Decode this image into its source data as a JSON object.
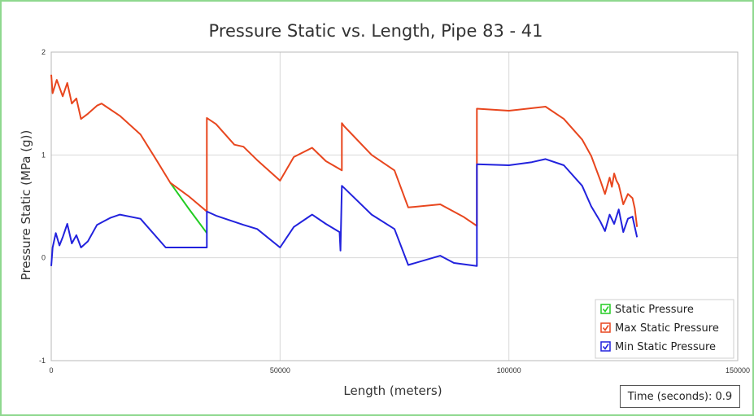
{
  "chart_data": {
    "type": "line",
    "title": "Pressure Static vs. Length, Pipe 83 - 41",
    "xlabel": "Length (meters)",
    "ylabel": "Pressure Static (MPa (g))",
    "xlim": [
      0,
      150000
    ],
    "ylim": [
      -1,
      2
    ],
    "xticks": [
      0,
      50000,
      100000,
      150000
    ],
    "xtick_labels": [
      "0",
      "50000",
      "100000",
      "150000"
    ],
    "yticks": [
      -1,
      0,
      1,
      2
    ],
    "ytick_labels": [
      "-1",
      "0",
      "1",
      "2"
    ],
    "grid": true,
    "legend_position": "bottom-right",
    "series": [
      {
        "name": "Static Pressure",
        "color": "#22cc22",
        "x": [
          26000,
          30000,
          34000
        ],
        "y": [
          0.73,
          0.48,
          0.24
        ]
      },
      {
        "name": "Max Static Pressure",
        "color": "#e8461e",
        "x": [
          0,
          300,
          1200,
          2500,
          3500,
          4500,
          5500,
          6500,
          8000,
          10000,
          11000,
          15000,
          19500,
          23000,
          26000,
          30000,
          34000,
          34000,
          36000,
          40000,
          42000,
          45000,
          50000,
          53000,
          57000,
          60000,
          63500,
          63500,
          64000,
          70000,
          75000,
          78000,
          85000,
          90000,
          93000,
          93000,
          100000,
          108000,
          112000,
          116000,
          118000,
          120000,
          121000,
          122000,
          122500,
          123000,
          123500,
          124000,
          125000,
          126000,
          127000,
          127500,
          128000
        ],
        "y": [
          1.78,
          1.6,
          1.73,
          1.57,
          1.7,
          1.5,
          1.55,
          1.35,
          1.4,
          1.48,
          1.5,
          1.38,
          1.2,
          0.95,
          0.73,
          0.6,
          0.45,
          1.36,
          1.3,
          1.1,
          1.08,
          0.95,
          0.75,
          0.98,
          1.07,
          0.94,
          0.85,
          1.31,
          1.28,
          1.0,
          0.85,
          0.49,
          0.52,
          0.4,
          0.31,
          1.45,
          1.43,
          1.47,
          1.35,
          1.15,
          0.99,
          0.75,
          0.62,
          0.78,
          0.69,
          0.82,
          0.75,
          0.71,
          0.52,
          0.62,
          0.58,
          0.48,
          0.3
        ]
      },
      {
        "name": "Min Static Pressure",
        "color": "#2222dd",
        "x": [
          0,
          300,
          1000,
          1800,
          2500,
          3500,
          4500,
          5500,
          6500,
          8000,
          10000,
          13000,
          15000,
          19500,
          25000,
          34000,
          34000,
          36000,
          42000,
          45000,
          50000,
          53000,
          57000,
          60000,
          63000,
          63200,
          63500,
          64000,
          70000,
          75000,
          78000,
          85000,
          88000,
          93000,
          93000,
          100000,
          105000,
          108000,
          112000,
          116000,
          118000,
          120000,
          121000,
          122000,
          123000,
          124000,
          125000,
          126000,
          127000,
          128000
        ],
        "y": [
          -0.08,
          0.1,
          0.24,
          0.12,
          0.2,
          0.33,
          0.14,
          0.22,
          0.1,
          0.16,
          0.32,
          0.39,
          0.42,
          0.38,
          0.1,
          0.1,
          0.45,
          0.41,
          0.32,
          0.28,
          0.1,
          0.3,
          0.42,
          0.33,
          0.25,
          0.07,
          0.7,
          0.68,
          0.42,
          0.28,
          -0.07,
          0.02,
          -0.05,
          -0.08,
          0.91,
          0.9,
          0.93,
          0.96,
          0.9,
          0.7,
          0.5,
          0.35,
          0.26,
          0.42,
          0.33,
          0.47,
          0.25,
          0.38,
          0.4,
          0.2
        ]
      }
    ]
  },
  "time_label": "Time (seconds): 0.9"
}
